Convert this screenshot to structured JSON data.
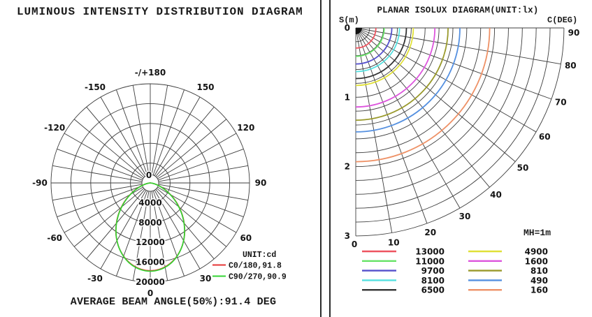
{
  "left_panel": {
    "title": "LUMINOUS INTENSITY DISTRIBUTION DIAGRAM",
    "footer": "AVERAGE BEAM ANGLE(50%):91.4 DEG",
    "legend": {
      "unit_label": "UNIT:cd",
      "entries": [
        {
          "label": "C0/180,91.8",
          "color": "#e63535"
        },
        {
          "label": "C90/270,90.9",
          "color": "#33d433"
        }
      ]
    }
  },
  "right_panel": {
    "title": "PLANAR ISOLUX DIAGRAM(UNIT:lx)",
    "s_axis_label": "S(m)",
    "c_axis_label": "C(DEG)",
    "mh_label": "MH=1m"
  },
  "chart_data": [
    {
      "type": "line",
      "subtype": "polar-luminous-intensity",
      "title": "LUMINOUS INTENSITY DISTRIBUTION DIAGRAM",
      "unit": "cd",
      "grid": true,
      "angle_ticks": [
        {
          "deg": 0,
          "label": "0"
        },
        {
          "deg": 30,
          "label": "30"
        },
        {
          "deg": 60,
          "label": "60"
        },
        {
          "deg": 90,
          "label": "90"
        },
        {
          "deg": 120,
          "label": "120"
        },
        {
          "deg": 150,
          "label": "150"
        },
        {
          "deg": 180,
          "label": "-/+180"
        },
        {
          "deg": -150,
          "label": "-150"
        },
        {
          "deg": -120,
          "label": "-120"
        },
        {
          "deg": -90,
          "label": "-90"
        },
        {
          "deg": -60,
          "label": "-60"
        },
        {
          "deg": -30,
          "label": "-30"
        }
      ],
      "center_label": "0",
      "ring_values": [
        4000,
        8000,
        12000,
        16000,
        20000
      ],
      "ring_max": 20000,
      "series": [
        {
          "name": "C0/180",
          "beam_angle_50_deg": 91.8,
          "peak_cd": 17700,
          "color": "#e63535"
        },
        {
          "name": "C90/270",
          "beam_angle_50_deg": 90.9,
          "peak_cd": 17800,
          "color": "#33d433"
        }
      ],
      "average_beam_angle_50_deg": 91.4
    },
    {
      "type": "line",
      "subtype": "planar-isolux-fan",
      "title": "PLANAR ISOLUX DIAGRAM(UNIT:lx)",
      "unit": "lx",
      "mounting_height_m": 1,
      "grid": true,
      "grid_step_m": 0.2,
      "s_max_m": 3,
      "s_ticks": [
        {
          "value": 0,
          "label": "0"
        },
        {
          "value": 1,
          "label": "1"
        },
        {
          "value": 2,
          "label": "2"
        },
        {
          "value": 3,
          "label": "3"
        }
      ],
      "angle_ticks": [
        {
          "deg": 0,
          "label": "0"
        },
        {
          "deg": 10,
          "label": "10"
        },
        {
          "deg": 20,
          "label": "20"
        },
        {
          "deg": 30,
          "label": "30"
        },
        {
          "deg": 40,
          "label": "40"
        },
        {
          "deg": 50,
          "label": "50"
        },
        {
          "deg": 60,
          "label": "60"
        },
        {
          "deg": 70,
          "label": "70"
        },
        {
          "deg": 80,
          "label": "80"
        },
        {
          "deg": 90,
          "label": "90"
        }
      ],
      "contours": [
        {
          "level_lx": 13000,
          "label": "13000",
          "radius_m": 0.29,
          "color": "#ee5560"
        },
        {
          "level_lx": 11000,
          "label": "11000",
          "radius_m": 0.41,
          "color": "#66e366"
        },
        {
          "level_lx": 9700,
          "label": "9700",
          "radius_m": 0.52,
          "color": "#5550cc"
        },
        {
          "level_lx": 8100,
          "label": "8100",
          "radius_m": 0.63,
          "color": "#55e0e0"
        },
        {
          "level_lx": 6500,
          "label": "6500",
          "radius_m": 0.73,
          "color": "#333333"
        },
        {
          "level_lx": 4900,
          "label": "4900",
          "radius_m": 0.83,
          "color": "#e0e038"
        },
        {
          "level_lx": 1600,
          "label": "1600",
          "radius_m": 1.14,
          "color": "#dd55dd"
        },
        {
          "level_lx": 810,
          "label": "810",
          "radius_m": 1.33,
          "color": "#99992b"
        },
        {
          "level_lx": 490,
          "label": "490",
          "radius_m": 1.5,
          "color": "#5590e0"
        },
        {
          "level_lx": 160,
          "label": "160",
          "radius_m": 1.93,
          "color": "#ee9166"
        }
      ]
    }
  ]
}
